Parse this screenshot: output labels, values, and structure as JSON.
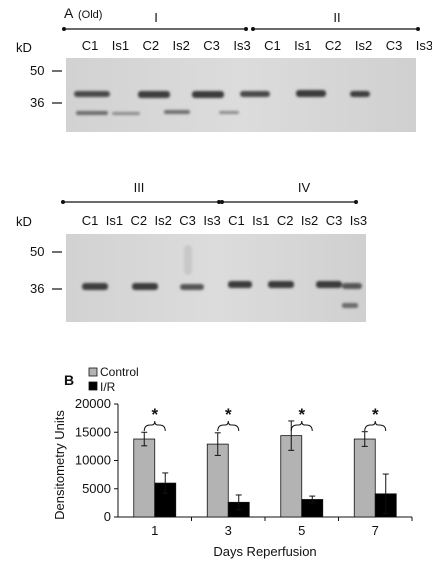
{
  "panel_a": {
    "label": "A",
    "sublabel": "(Old)",
    "kd_label": "kD",
    "markers": [
      "50",
      "36"
    ],
    "blot1": {
      "groups": [
        "I",
        "II"
      ],
      "lanes": [
        "C1",
        "Is1",
        "C2",
        "Is2",
        "C3",
        "Is3",
        "C1",
        "Is1",
        "C2",
        "Is2",
        "C3",
        "Is3"
      ]
    },
    "blot2": {
      "groups": [
        "III",
        "IV"
      ],
      "lanes": [
        "C1",
        "Is1",
        "C2",
        "Is2",
        "C3",
        "Is3",
        "C1",
        "Is1",
        "C2",
        "Is2",
        "C3",
        "Is3"
      ]
    }
  },
  "panel_b": {
    "label": "B",
    "chart_data": {
      "type": "bar",
      "categories": [
        "1",
        "3",
        "5",
        "7"
      ],
      "series": [
        {
          "name": "Control",
          "color": "#b3b3b3",
          "values": [
            13800,
            12900,
            14400,
            13800
          ],
          "errors": [
            1200,
            2000,
            2600,
            1300
          ]
        },
        {
          "name": "I/R",
          "color": "#000000",
          "values": [
            6000,
            2600,
            3100,
            4100
          ],
          "errors": [
            1800,
            1300,
            600,
            3500
          ]
        }
      ],
      "xlabel": "Days Reperfusion",
      "ylabel": "Densitometry Units",
      "ylim": [
        0,
        20000
      ],
      "yticks": [
        "0",
        "5000",
        "10000",
        "15000",
        "20000"
      ],
      "significance": [
        "*",
        "*",
        "*",
        "*"
      ],
      "legend_position": "top-left"
    }
  }
}
